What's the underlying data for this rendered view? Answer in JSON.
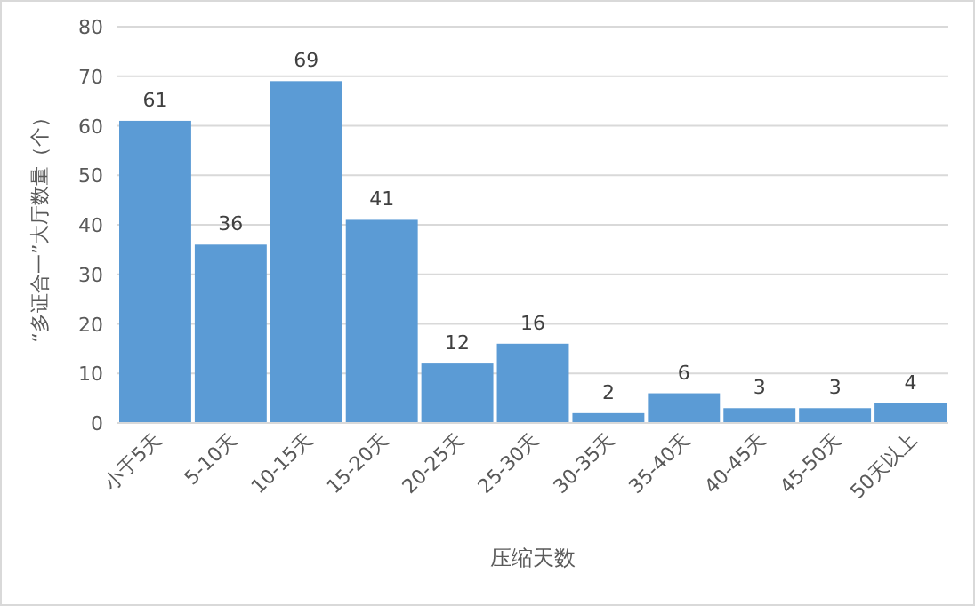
{
  "chart_data": {
    "type": "bar",
    "xlabel": "压缩天数",
    "ylabel": "“多证合一”大厅数量（个）",
    "categories": [
      "小于5天",
      "5-10天",
      "10-15天",
      "15-20天",
      "20-25天",
      "25-30天",
      "30-35天",
      "35-40天",
      "40-45天",
      "45-50天",
      "50天以上"
    ],
    "values": [
      61,
      36,
      69,
      41,
      12,
      16,
      2,
      6,
      3,
      3,
      4
    ],
    "color": "#5b9bd5",
    "ylim": [
      0,
      80
    ],
    "yticks": [
      0,
      10,
      20,
      30,
      40,
      50,
      60,
      70,
      80
    ],
    "grid": "y",
    "data_labels": true
  }
}
